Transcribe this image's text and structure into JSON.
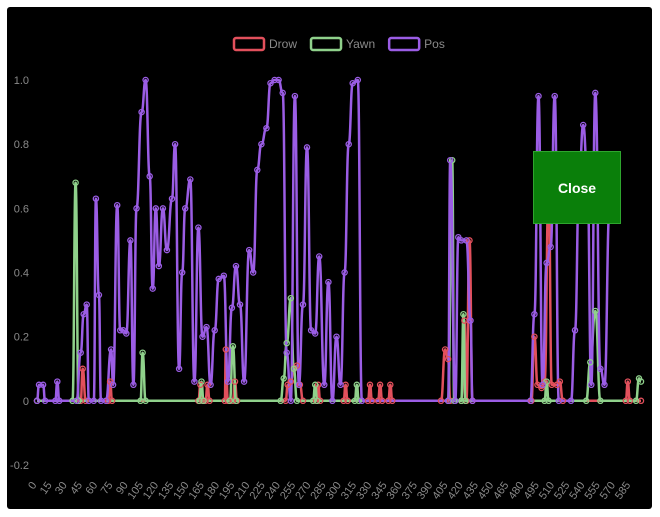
{
  "close_button": {
    "label": "Close"
  },
  "chart_data": {
    "type": "line",
    "title": "",
    "xlabel": "",
    "ylabel": "",
    "ylim": [
      -0.2,
      1.05
    ],
    "y_ticks": [
      -0.2,
      0,
      0.2,
      0.4,
      0.6,
      0.8,
      1.0
    ],
    "y_tick_labels": [
      "-0.2",
      "0",
      "0.2",
      "0.4",
      "0.6",
      "0.8",
      "1.0"
    ],
    "x_tick_labels": [
      "0",
      "15",
      "30",
      "45",
      "60",
      "75",
      "90",
      "105",
      "120",
      "135",
      "150",
      "165",
      "180",
      "195",
      "210",
      "225",
      "240",
      "255",
      "270",
      "285",
      "300",
      "315",
      "330",
      "345",
      "360",
      "375",
      "390",
      "405",
      "420",
      "435",
      "450",
      "465",
      "480",
      "495",
      "510",
      "525",
      "540",
      "555",
      "570",
      "585"
    ],
    "x_tick_step": 15,
    "grid": false,
    "legend_position": "top",
    "series": [
      {
        "name": "Drow",
        "color": "#e2505c",
        "points": [
          [
            0,
            0
          ],
          [
            43,
            0
          ],
          [
            45,
            0.1
          ],
          [
            48,
            0
          ],
          [
            70,
            0
          ],
          [
            72,
            0.06
          ],
          [
            74,
            0
          ],
          [
            159,
            0
          ],
          [
            161,
            0.05
          ],
          [
            163,
            0
          ],
          [
            166,
            0
          ],
          [
            168,
            0.05
          ],
          [
            170,
            0
          ],
          [
            185,
            0
          ],
          [
            186,
            0.16
          ],
          [
            188,
            0
          ],
          [
            193,
            0
          ],
          [
            195,
            0.06
          ],
          [
            197,
            0
          ],
          [
            245,
            0
          ],
          [
            247,
            0.05
          ],
          [
            250,
            0.06
          ],
          [
            253,
            0.1
          ],
          [
            256,
            0.11
          ],
          [
            259,
            0.05
          ],
          [
            262,
            0
          ],
          [
            275,
            0
          ],
          [
            277,
            0.05
          ],
          [
            279,
            0
          ],
          [
            302,
            0
          ],
          [
            304,
            0.05
          ],
          [
            306,
            0
          ],
          [
            326,
            0
          ],
          [
            328,
            0.05
          ],
          [
            330,
            0
          ],
          [
            336,
            0
          ],
          [
            338,
            0.05
          ],
          [
            340,
            0
          ],
          [
            346,
            0
          ],
          [
            348,
            0.05
          ],
          [
            350,
            0
          ],
          [
            398,
            0
          ],
          [
            402,
            0.16
          ],
          [
            405,
            0.13
          ],
          [
            407,
            0
          ],
          [
            418,
            0
          ],
          [
            421,
            0.25
          ],
          [
            423,
            0
          ],
          [
            426,
            0.5
          ],
          [
            429,
            0
          ],
          [
            487,
            0
          ],
          [
            490,
            0.2
          ],
          [
            493,
            0.05
          ],
          [
            497,
            0.04
          ],
          [
            500,
            0.06
          ],
          [
            504,
            0.65
          ],
          [
            507,
            0.05
          ],
          [
            512,
            0.05
          ],
          [
            515,
            0.06
          ],
          [
            518,
            0
          ],
          [
            580,
            0
          ],
          [
            582,
            0.06
          ],
          [
            584,
            0
          ],
          [
            595,
            0
          ]
        ]
      },
      {
        "name": "Yawn",
        "color": "#8fd18b",
        "points": [
          [
            0,
            0
          ],
          [
            35,
            0
          ],
          [
            38,
            0.68
          ],
          [
            41,
            0
          ],
          [
            102,
            0
          ],
          [
            104,
            0.15
          ],
          [
            107,
            0
          ],
          [
            160,
            0
          ],
          [
            162,
            0.06
          ],
          [
            164,
            0
          ],
          [
            190,
            0
          ],
          [
            193,
            0.17
          ],
          [
            196,
            0
          ],
          [
            240,
            0
          ],
          [
            243,
            0.07
          ],
          [
            246,
            0.18
          ],
          [
            250,
            0.32
          ],
          [
            253,
            0.1
          ],
          [
            256,
            0
          ],
          [
            272,
            0
          ],
          [
            274,
            0.05
          ],
          [
            276,
            0
          ],
          [
            313,
            0
          ],
          [
            315,
            0.05
          ],
          [
            317,
            0
          ],
          [
            405,
            0
          ],
          [
            409,
            0.75
          ],
          [
            411,
            0
          ],
          [
            418,
            0
          ],
          [
            420,
            0.27
          ],
          [
            422,
            0
          ],
          [
            500,
            0
          ],
          [
            502,
            0.06
          ],
          [
            504,
            0
          ],
          [
            541,
            0
          ],
          [
            545,
            0.12
          ],
          [
            550,
            0.28
          ],
          [
            555,
            0
          ],
          [
            590,
            0
          ],
          [
            593,
            0.07
          ],
          [
            595,
            0.06
          ]
        ]
      },
      {
        "name": "Pos",
        "color": "#9b5de5",
        "points": [
          [
            0,
            0
          ],
          [
            2,
            0.05
          ],
          [
            6,
            0.05
          ],
          [
            8,
            0
          ],
          [
            18,
            0
          ],
          [
            20,
            0.06
          ],
          [
            22,
            0
          ],
          [
            39,
            0
          ],
          [
            43,
            0.15
          ],
          [
            46,
            0.27
          ],
          [
            49,
            0.3
          ],
          [
            51,
            0
          ],
          [
            56,
            0
          ],
          [
            58,
            0.63
          ],
          [
            61,
            0.33
          ],
          [
            63,
            0
          ],
          [
            68,
            0
          ],
          [
            73,
            0.16
          ],
          [
            75,
            0.05
          ],
          [
            79,
            0.61
          ],
          [
            82,
            0.22
          ],
          [
            85,
            0.22
          ],
          [
            88,
            0.21
          ],
          [
            92,
            0.5
          ],
          [
            95,
            0.05
          ],
          [
            98,
            0.6
          ],
          [
            103,
            0.9
          ],
          [
            107,
            1.0
          ],
          [
            111,
            0.7
          ],
          [
            114,
            0.35
          ],
          [
            117,
            0.6
          ],
          [
            120,
            0.42
          ],
          [
            124,
            0.6
          ],
          [
            128,
            0.47
          ],
          [
            133,
            0.63
          ],
          [
            136,
            0.8
          ],
          [
            140,
            0.1
          ],
          [
            143,
            0.4
          ],
          [
            146,
            0.6
          ],
          [
            151,
            0.69
          ],
          [
            155,
            0.06
          ],
          [
            159,
            0.54
          ],
          [
            163,
            0.2
          ],
          [
            167,
            0.23
          ],
          [
            171,
            0.05
          ],
          [
            175,
            0.22
          ],
          [
            179,
            0.38
          ],
          [
            184,
            0.39
          ],
          [
            188,
            0.06
          ],
          [
            192,
            0.29
          ],
          [
            196,
            0.42
          ],
          [
            200,
            0.3
          ],
          [
            204,
            0.06
          ],
          [
            209,
            0.47
          ],
          [
            213,
            0.4
          ],
          [
            217,
            0.72
          ],
          [
            221,
            0.8
          ],
          [
            226,
            0.85
          ],
          [
            230,
            0.99
          ],
          [
            234,
            1.0
          ],
          [
            238,
            1.0
          ],
          [
            242,
            0.96
          ],
          [
            246,
            0.15
          ],
          [
            250,
            0
          ],
          [
            254,
            0.95
          ],
          [
            258,
            0.05
          ],
          [
            262,
            0.3
          ],
          [
            266,
            0.79
          ],
          [
            270,
            0.22
          ],
          [
            274,
            0.21
          ],
          [
            278,
            0.45
          ],
          [
            283,
            0.05
          ],
          [
            287,
            0.37
          ],
          [
            291,
            0
          ],
          [
            295,
            0.2
          ],
          [
            299,
            0.05
          ],
          [
            303,
            0.4
          ],
          [
            307,
            0.8
          ],
          [
            311,
            0.99
          ],
          [
            316,
            1.0
          ],
          [
            320,
            0
          ],
          [
            405,
            0
          ],
          [
            407,
            0.75
          ],
          [
            412,
            0
          ],
          [
            415,
            0.51
          ],
          [
            418,
            0.5
          ],
          [
            423,
            0.5
          ],
          [
            427,
            0.25
          ],
          [
            429,
            0
          ],
          [
            486,
            0
          ],
          [
            490,
            0.27
          ],
          [
            494,
            0.95
          ],
          [
            498,
            0.05
          ],
          [
            502,
            0.43
          ],
          [
            506,
            0.48
          ],
          [
            510,
            0.95
          ],
          [
            514,
            0
          ],
          [
            526,
            0
          ],
          [
            530,
            0.22
          ],
          [
            534,
            0.68
          ],
          [
            538,
            0.86
          ],
          [
            542,
            0.72
          ],
          [
            546,
            0.05
          ],
          [
            550,
            0.96
          ],
          [
            555,
            0.1
          ],
          [
            559,
            0.05
          ],
          [
            564,
            0.6
          ]
        ]
      }
    ]
  }
}
